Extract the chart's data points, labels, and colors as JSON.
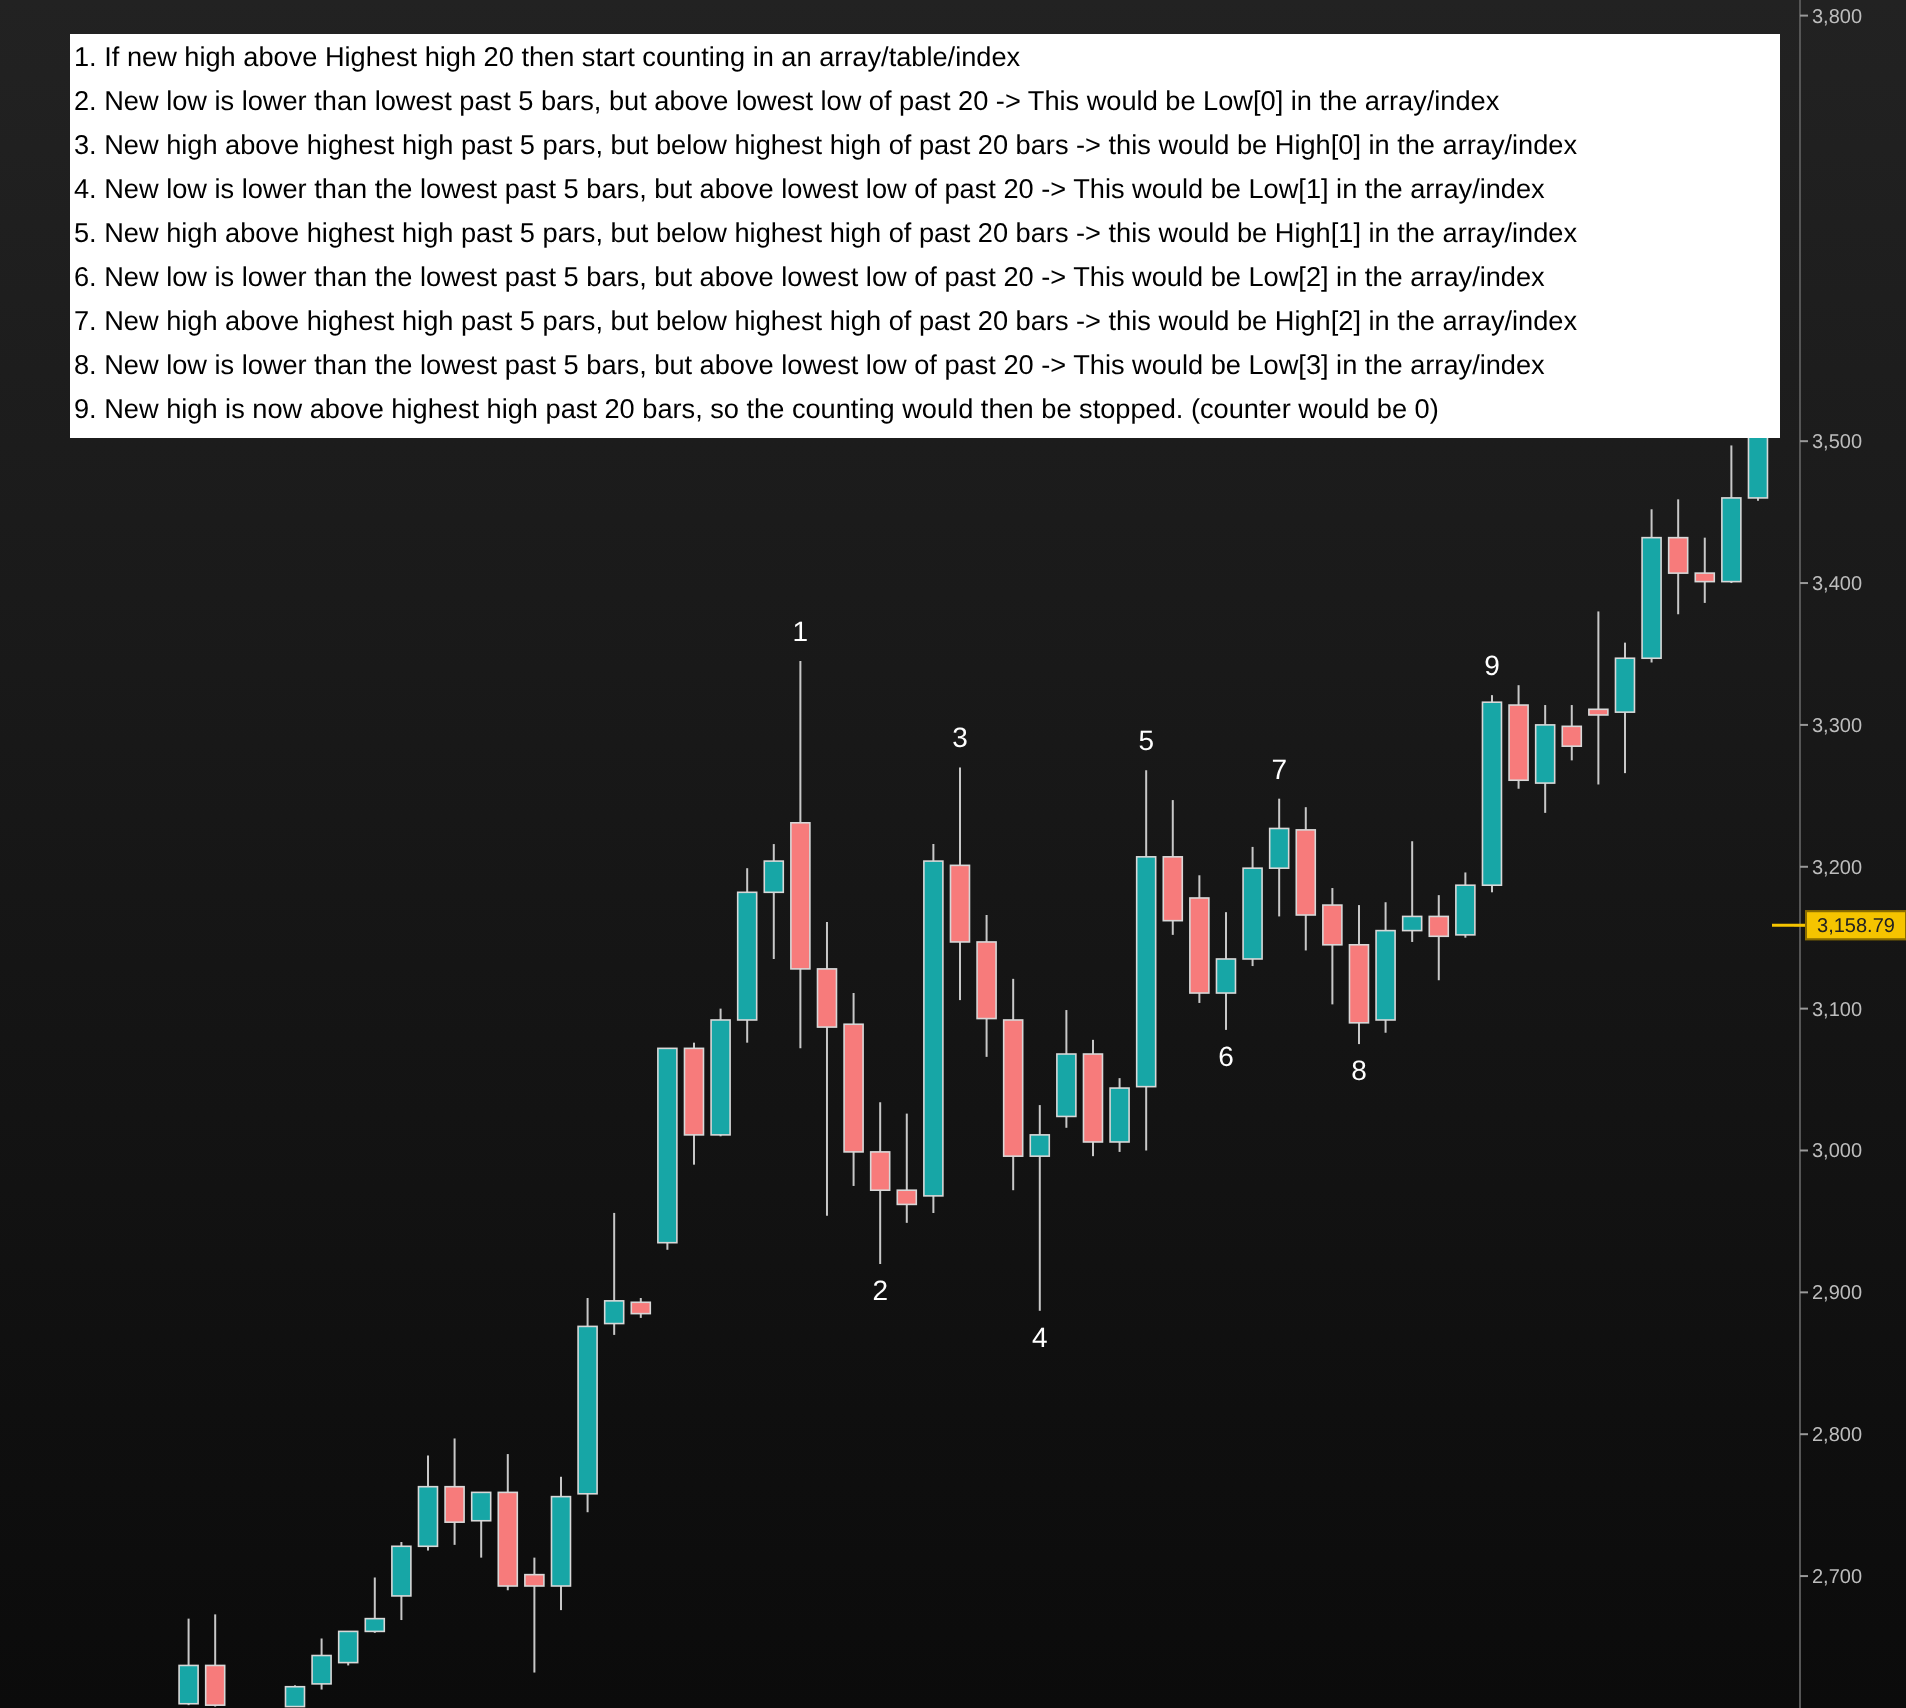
{
  "chart_data": {
    "type": "candlestick",
    "categories": [
      null,
      null,
      null,
      null,
      null,
      null,
      null,
      null,
      null,
      null,
      null,
      null,
      null,
      null,
      null,
      null,
      null,
      null,
      null,
      null,
      null,
      null,
      null,
      null,
      null,
      null,
      null,
      null,
      null,
      null,
      null,
      null,
      null,
      null,
      null,
      null,
      null,
      null,
      null,
      null,
      null,
      null,
      null,
      null,
      null,
      null,
      null,
      null,
      null,
      null,
      null,
      null,
      null,
      null,
      null,
      null,
      null,
      null,
      null,
      null
    ],
    "ohlc": [
      [
        2610,
        2670,
        2609,
        2637
      ],
      [
        2637,
        2673,
        2608,
        2609
      ],
      null,
      null,
      [
        2608,
        2623,
        2608,
        2622
      ],
      [
        2624,
        2656,
        2620,
        2644
      ],
      [
        2639,
        2661,
        2637,
        2661
      ],
      [
        2661,
        2699,
        2660,
        2670
      ],
      [
        2686,
        2724,
        2669,
        2721
      ],
      [
        2721,
        2785,
        2718,
        2763
      ],
      [
        2763,
        2797,
        2722,
        2738
      ],
      [
        2739,
        2759,
        2713,
        2759
      ],
      [
        2759,
        2786,
        2690,
        2693
      ],
      [
        2701,
        2713,
        2632,
        2693
      ],
      [
        2693,
        2770,
        2676,
        2756
      ],
      [
        2758,
        2896,
        2745,
        2876
      ],
      [
        2878,
        2956,
        2870,
        2894
      ],
      [
        2893,
        2896,
        2882,
        2885
      ],
      [
        2935,
        3072,
        2930,
        3072
      ],
      [
        3072,
        3076,
        2990,
        3011
      ],
      [
        3011,
        3100,
        3010,
        3092
      ],
      [
        3092,
        3199,
        3076,
        3182
      ],
      [
        3182,
        3216,
        3135,
        3204
      ],
      [
        3231,
        3345,
        3072,
        3128
      ],
      [
        3128,
        3161,
        2954,
        3087
      ],
      [
        3089,
        3111,
        2975,
        2999
      ],
      [
        2999,
        3034,
        2920,
        2972
      ],
      [
        2972,
        3026,
        2949,
        2962
      ],
      [
        2968,
        3216,
        2956,
        3204
      ],
      [
        3201,
        3270,
        3106,
        3147
      ],
      [
        3147,
        3166,
        3066,
        3093
      ],
      [
        3092,
        3121,
        2972,
        2996
      ],
      [
        2996,
        3032,
        2887,
        3011
      ],
      [
        3024,
        3099,
        3016,
        3068
      ],
      [
        3068,
        3078,
        2996,
        3006
      ],
      [
        3006,
        3051,
        2999,
        3044
      ],
      [
        3045,
        3268,
        3000,
        3207
      ],
      [
        3207,
        3247,
        3152,
        3162
      ],
      [
        3178,
        3194,
        3104,
        3111
      ],
      [
        3111,
        3168,
        3085,
        3135
      ],
      [
        3135,
        3214,
        3130,
        3199
      ],
      [
        3199,
        3248,
        3165,
        3227
      ],
      [
        3226,
        3242,
        3141,
        3166
      ],
      [
        3173,
        3185,
        3103,
        3145
      ],
      [
        3145,
        3173,
        3075,
        3090
      ],
      [
        3092,
        3175,
        3083,
        3155
      ],
      [
        3155,
        3218,
        3147,
        3165
      ],
      [
        3165,
        3180,
        3120,
        3151
      ],
      [
        3152,
        3196,
        3150,
        3187
      ],
      [
        3187,
        3321,
        3182,
        3316
      ],
      [
        3314,
        3328,
        3255,
        3261
      ],
      [
        3259,
        3314,
        3238,
        3300
      ],
      [
        3299,
        3314,
        3275,
        3285
      ],
      [
        3311,
        3380,
        3258,
        3307
      ],
      [
        3309,
        3358,
        3266,
        3347
      ],
      [
        3347,
        3452,
        3344,
        3432
      ],
      [
        3432,
        3459,
        3378,
        3407
      ],
      [
        3407,
        3432,
        3386,
        3401
      ],
      [
        3401,
        3497,
        3400,
        3460
      ],
      [
        3460,
        3505,
        3458,
        3505
      ]
    ],
    "ylim": [
      2607,
      3811
    ],
    "yticks": [
      {
        "value": 2700,
        "label": "2,700"
      },
      {
        "value": 2800,
        "label": "2,800"
      },
      {
        "value": 2900,
        "label": "2,900"
      },
      {
        "value": 3000,
        "label": "3,000"
      },
      {
        "value": 3100,
        "label": "3,100"
      },
      {
        "value": 3200,
        "label": "3,200"
      },
      {
        "value": 3300,
        "label": "3,300"
      },
      {
        "value": 3400,
        "label": "3,400"
      },
      {
        "value": 3500,
        "label": "3,500"
      },
      {
        "value": 3800,
        "label": "3,800"
      }
    ],
    "tick_labels": "y",
    "ref_lines": [
      {
        "axis": "y",
        "value": 3158.79,
        "label": "3,158.79",
        "color": "#f5c400"
      }
    ],
    "annotations": [
      "1. If new high above Highest high 20 then start counting in an array/table/index",
      "2. New low is lower than lowest past 5 bars, but above  lowest low of past 20 -> This would be Low[0] in the array/index",
      "3. New high above highest high past 5 pars, but below highest high of past 20 bars -> this would be High[0] in the array/index",
      "4. New low is lower than the lowest past 5 bars, but above lowest low of past 20 -> This would be Low[1] in the array/index",
      "5. New high above highest high past 5 pars, but below highest high of past 20 bars -> this would be High[1] in the array/index",
      "6. New low is lower than the lowest past 5 bars, but above lowest low of past 20 -> This would be Low[2] in the array/index",
      "7. New high above highest high past 5 pars, but below highest high of past 20 bars -> this would be High[2] in the array/index",
      "8. New low is lower than the lowest past 5 bars, but above lowest low of past 20 -> This would be Low[3] in the array/index",
      "9. New high is now above highest high past 20 bars, so the counting would then be stopped. (counter would be 0)",
      {
        "text": "1",
        "y": 3345
      },
      {
        "text": "2",
        "y": 2920
      },
      {
        "text": "3",
        "y": 3270
      },
      {
        "text": "4",
        "y": 2887
      },
      {
        "text": "5",
        "y": 3268
      },
      {
        "text": "6",
        "y": 3085
      },
      {
        "text": "7",
        "y": 3248
      },
      {
        "text": "8",
        "y": 3075
      },
      {
        "text": "9",
        "y": 3321
      }
    ]
  }
}
